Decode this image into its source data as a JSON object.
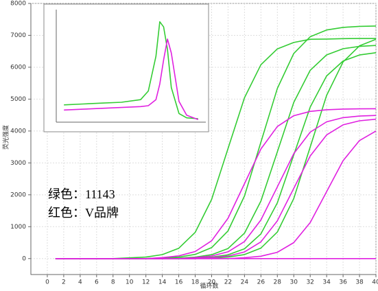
{
  "chart_data": [
    {
      "type": "line",
      "x_label": "循环数",
      "y_label": "荧光强度",
      "annotations": [
        "绿色：11143",
        "红色：V品牌"
      ],
      "x": [
        1,
        4,
        8,
        12,
        14,
        16,
        18,
        20,
        22,
        24,
        26,
        28,
        30,
        32,
        34,
        36,
        38,
        40
      ],
      "xlim": [
        -2,
        40
      ],
      "ylim": [
        -500,
        8000
      ],
      "xticks": [
        0,
        2,
        4,
        6,
        8,
        10,
        12,
        14,
        16,
        18,
        20,
        22,
        24,
        26,
        28,
        30,
        32,
        34,
        36,
        38,
        40
      ],
      "yticks": [
        0,
        1000,
        2000,
        3000,
        4000,
        5000,
        6000,
        7000,
        8000
      ],
      "grid": true,
      "series": [
        {
          "color": "#33cc33",
          "values": [
            0,
            0,
            0,
            46,
            124,
            324,
            821,
            1856,
            3450,
            5044,
            6079,
            6576,
            6776,
            6876,
            6883,
            6896,
            6900,
            6900
          ]
        },
        {
          "color": "#33cc33",
          "values": [
            0,
            0,
            0,
            0,
            18,
            49,
            131,
            343,
            869,
            1964,
            3650,
            5336,
            6431,
            6957,
            7168,
            7249,
            7282,
            7293
          ]
        },
        {
          "color": "#33cc33",
          "values": [
            0,
            0,
            0,
            0,
            0,
            17,
            45,
            121,
            315,
            797,
            1802,
            3350,
            4898,
            5903,
            6385,
            6579,
            6653,
            6683
          ]
        },
        {
          "color": "#33cc33",
          "values": [
            0,
            0,
            0,
            0,
            0,
            0,
            16,
            44,
            117,
            306,
            774,
            1749,
            3250,
            4751,
            5727,
            6194,
            6383,
            6455
          ]
        },
        {
          "color": "#33cc33",
          "values": [
            0,
            0,
            0,
            0,
            0,
            0,
            0,
            17,
            47,
            126,
            329,
            833,
            1883,
            3500,
            5117,
            6167,
            6671,
            6874
          ]
        },
        {
          "color": "#e020e0",
          "values": [
            0,
            0,
            0,
            0,
            32,
            85,
            221,
            559,
            1264,
            2350,
            3436,
            4141,
            4479,
            4615,
            4667,
            4688,
            4695,
            4698
          ]
        },
        {
          "color": "#e020e0",
          "values": [
            0,
            0,
            0,
            0,
            0,
            0,
            30,
            81,
            212,
            536,
            1211,
            2250,
            3290,
            3965,
            4289,
            4419,
            4468,
            4488
          ]
        },
        {
          "color": "#e020e0",
          "values": [
            0,
            0,
            0,
            0,
            0,
            0,
            0,
            30,
            79,
            207,
            524,
            1184,
            2200,
            3216,
            3876,
            4193,
            4321,
            4369
          ]
        },
        {
          "color": "#e020e0",
          "values": [
            0,
            0,
            0,
            0,
            0,
            0,
            0,
            0,
            0,
            28,
            75,
            197,
            500,
            1130,
            2100,
            3070,
            3700,
            4000
          ]
        },
        {
          "color": "#e020e0",
          "values": [
            0,
            0,
            0,
            0,
            0,
            0,
            0,
            0,
            0,
            0,
            0,
            0,
            0,
            0,
            0,
            0,
            0,
            0
          ]
        }
      ]
    },
    {
      "type": "line",
      "x": [
        60,
        65,
        70,
        75,
        80,
        82,
        84,
        85,
        86,
        87,
        88,
        90,
        92,
        95
      ],
      "xlim": [
        58,
        97
      ],
      "ylim": [
        0,
        6500
      ],
      "series": [
        {
          "color": "#33cc33",
          "values": [
            1000,
            1050,
            1100,
            1150,
            1300,
            1800,
            3800,
            5800,
            5500,
            4200,
            2000,
            500,
            250,
            200
          ]
        },
        {
          "color": "#e020e0",
          "values": [
            700,
            750,
            800,
            850,
            900,
            950,
            1300,
            2200,
            3600,
            4800,
            4000,
            1200,
            400,
            150
          ]
        }
      ]
    }
  ]
}
